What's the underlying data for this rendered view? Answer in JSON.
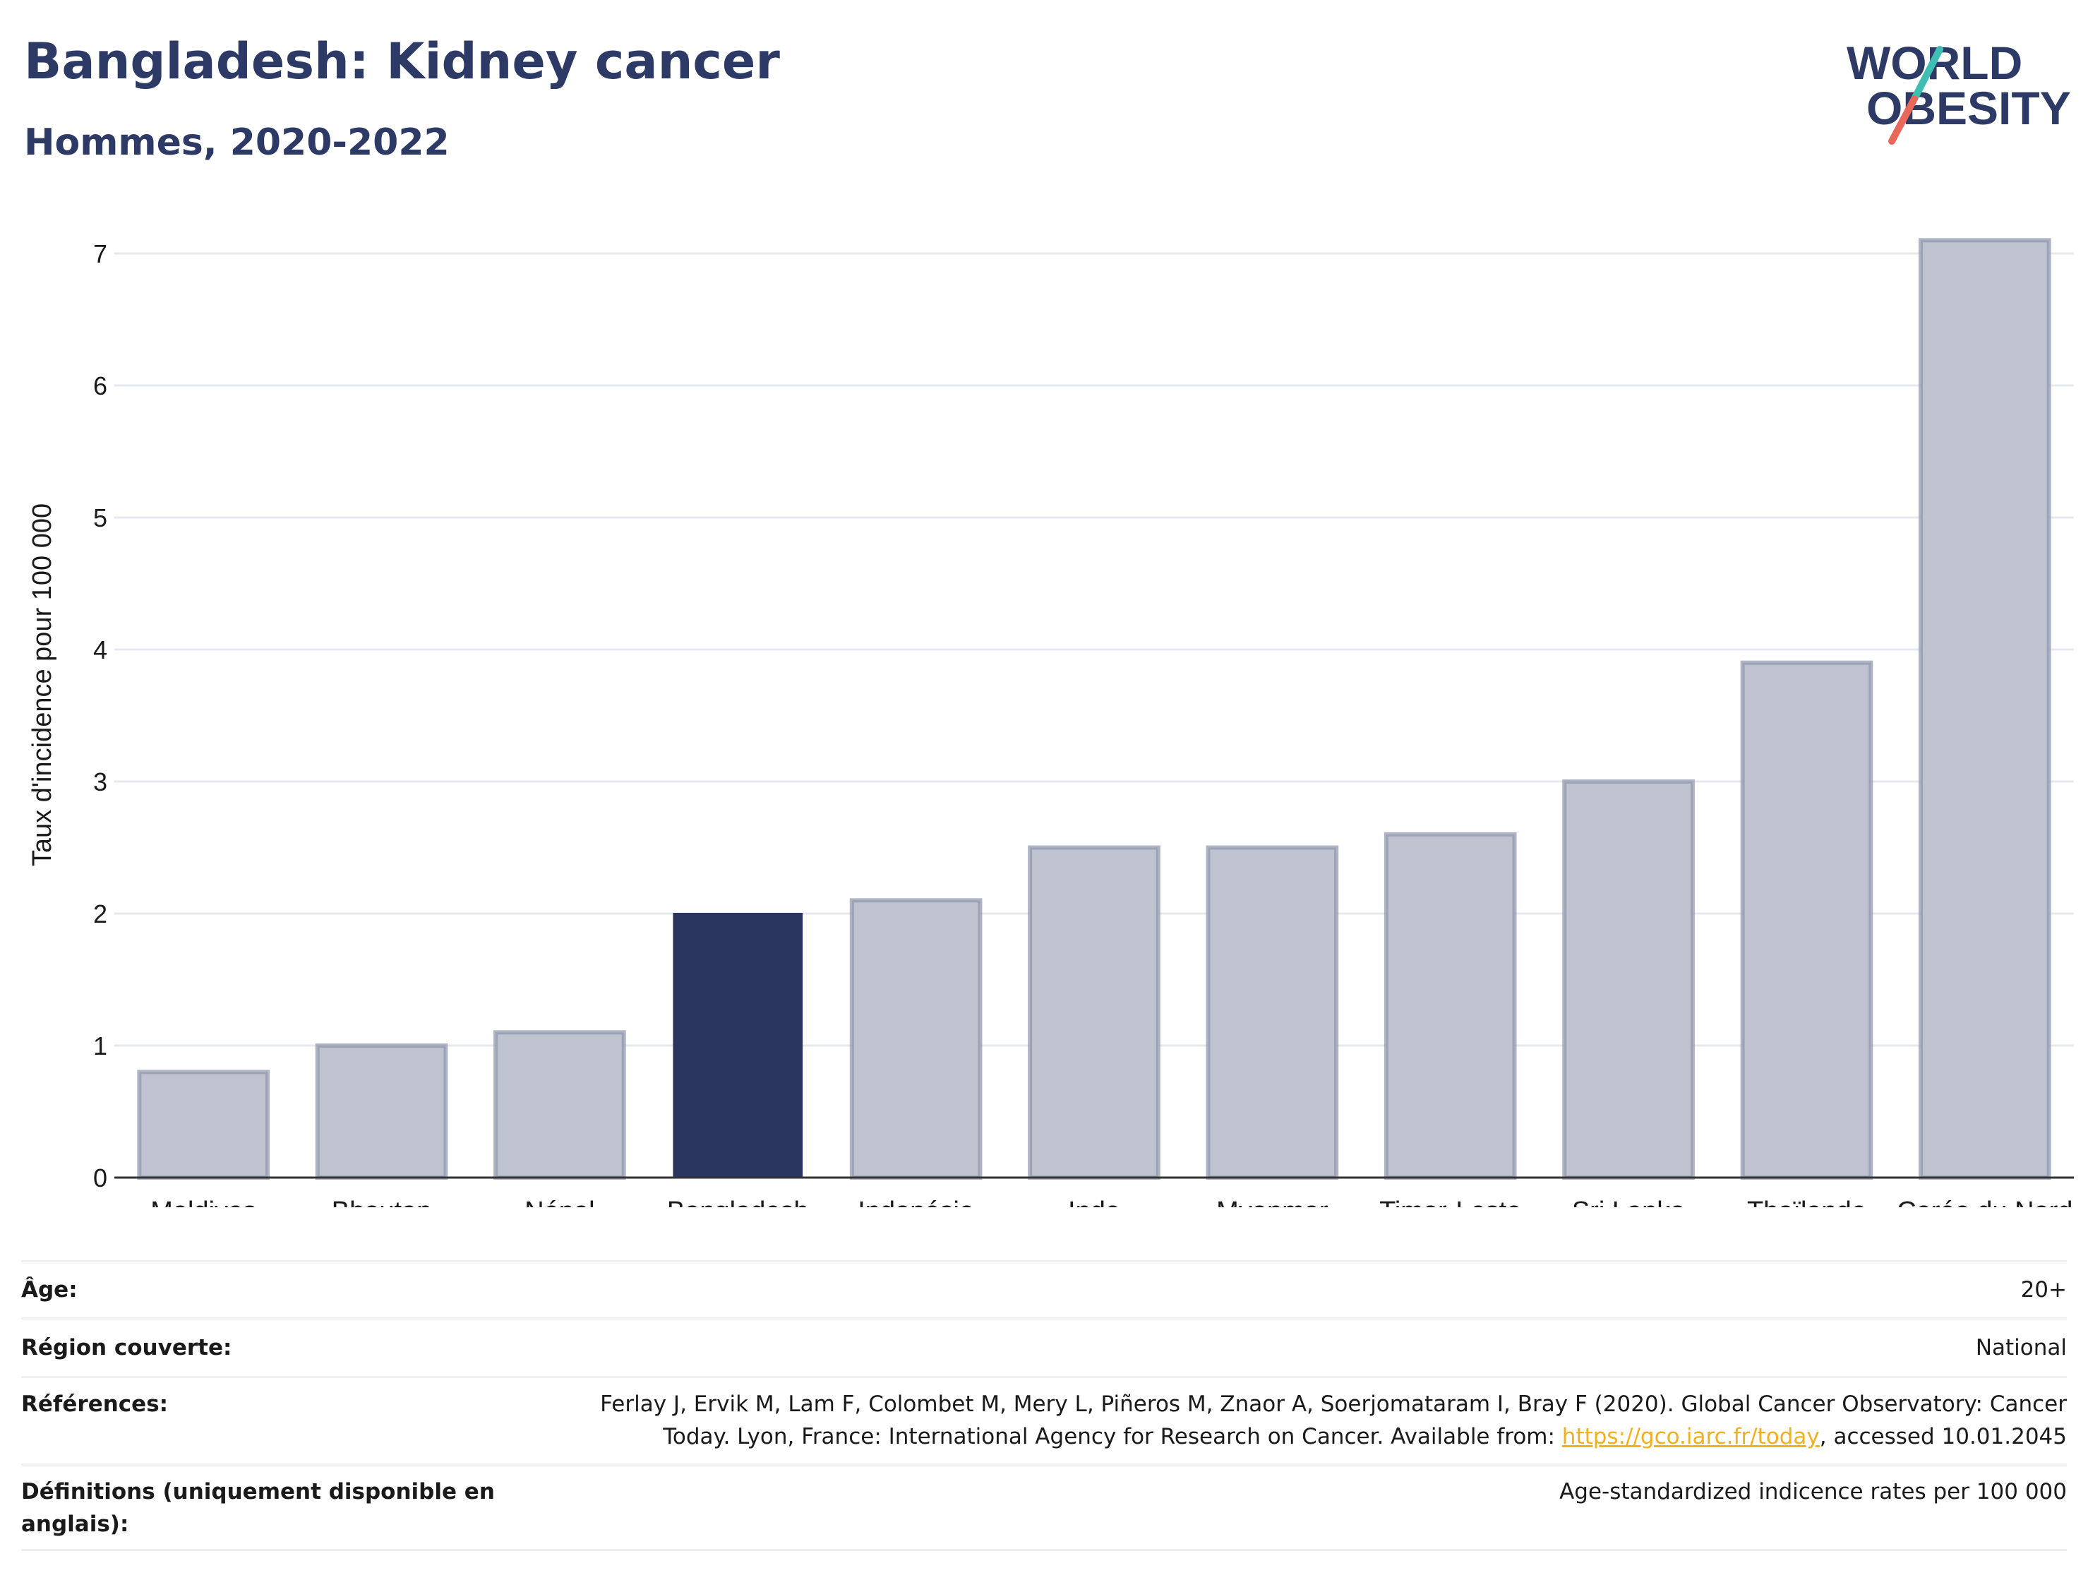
{
  "header": {
    "title": "Bangladesh: Kidney cancer",
    "subtitle": "Hommes, 2020-2022"
  },
  "logo": {
    "line1": "WORLD",
    "line2": "OBESITY"
  },
  "colors": {
    "highlight": "#2a3560",
    "bar_fill": "#bfc3d0",
    "bar_stroke": "#8f96ad",
    "grid": "#e6e8ee",
    "title": "#2d3a66",
    "logo_teal": "#3fbfb4",
    "logo_red": "#e8685c"
  },
  "chart_data": {
    "type": "bar",
    "title": "Bangladesh: Kidney cancer",
    "subtitle": "Hommes, 2020-2022",
    "xlabel": "",
    "ylabel": "Taux d'incidence pour 100 000",
    "categories": [
      "Maldives",
      "Bhoutan",
      "Népal",
      "Bangladesh",
      "Indonésie",
      "Inde",
      "Myanmar",
      "Timor-Leste",
      "Sri Lanka",
      "Thaïlande",
      "Corée du Nord"
    ],
    "values": [
      0.8,
      1.0,
      1.1,
      2.0,
      2.1,
      2.5,
      2.5,
      2.6,
      3.0,
      3.9,
      7.1
    ],
    "highlight": "Bangladesh",
    "ylim": [
      0,
      7.35
    ],
    "yticks": [
      0,
      1,
      2,
      3,
      4,
      5,
      6,
      7
    ],
    "grid": true,
    "legend": "none"
  },
  "meta": {
    "age_label": "Âge:",
    "age_value": "20+",
    "region_label": "Région couverte:",
    "region_value": "National",
    "references_label": "Références:",
    "references_line1": "Ferlay J, Ervik M, Lam F, Colombet M, Mery L, Piñeros M, Znaor A, Soerjomataram I, Bray F (2020). Global Cancer Observatory: Cancer",
    "references_line2_pre": "Today. Lyon, France: International Agency for Research on Cancer. Available from: ",
    "references_link": "https://gco.iarc.fr/today",
    "references_line2_post": ", accessed 10.01.2045",
    "definitions_label": "Définitions (uniquement disponible en anglais):",
    "definitions_value": "Age-standardized indicence rates per 100 000"
  }
}
